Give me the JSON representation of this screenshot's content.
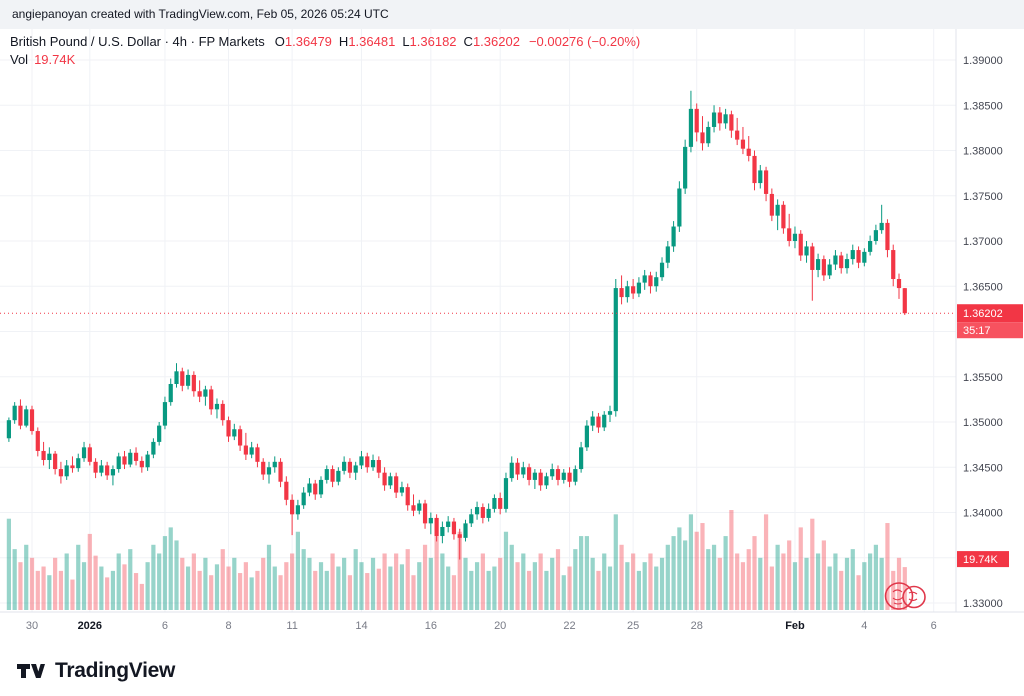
{
  "attribution": {
    "text": "angiepanoyan created with TradingView.com, Feb 05, 2026 05:24 UTC"
  },
  "legend": {
    "title": "British Pound / U.S. Dollar · 4h · FP Markets",
    "ohlc": [
      {
        "label": "O",
        "value": "1.36479"
      },
      {
        "label": "H",
        "value": "1.36481"
      },
      {
        "label": "L",
        "value": "1.36182"
      },
      {
        "label": "C",
        "value": "1.36202"
      }
    ],
    "change": "−0.00276 (−0.20%)",
    "vol_label": "Vol",
    "vol_value": "19.74K"
  },
  "price_scale": {
    "last_price_badge": "1.36202",
    "countdown": "35:17",
    "volume_badge": "19.74K"
  },
  "footer": {
    "logo_text": "TradingView"
  },
  "icons": {
    "logo": "tradingview-logo",
    "seal": "red-seal-stamp"
  },
  "colors": {
    "up": "#089981",
    "down": "#f23645",
    "vol_up": "rgba(8,153,129,0.42)",
    "vol_down": "rgba(242,54,69,0.38)",
    "grid": "#f0f2f6",
    "axis_text": "#434651",
    "muted_text": "#787b86",
    "bold_label": "#131722",
    "separator": "#e0e3eb",
    "countdown_bg": "#f7525f"
  },
  "chart_data": {
    "type": "candlestick",
    "title": "British Pound / U.S. Dollar",
    "interval": "4h",
    "exchange": "FP Markets",
    "ohlc_header": {
      "open": 1.36479,
      "high": 1.36481,
      "low": 1.36182,
      "close": 1.36202,
      "change": "−0.00276 (−0.20%)",
      "volume": "19.74K"
    },
    "last_price": 1.36202,
    "y_axis": {
      "ticks": [
        "1.39000",
        "1.38500",
        "1.38000",
        "1.37500",
        "1.37000",
        "1.36500",
        "1.35500",
        "1.35000",
        "1.34500",
        "1.34000",
        "1.33500",
        "1.33000"
      ],
      "grid_min": 1.33,
      "grid_max": 1.39,
      "grid_step": 0.005
    },
    "x_labels": [
      {
        "text": "30",
        "idx": 4
      },
      {
        "text": "2026",
        "idx": 14,
        "bold": true
      },
      {
        "text": "6",
        "idx": 27
      },
      {
        "text": "8",
        "idx": 38
      },
      {
        "text": "11",
        "idx": 49
      },
      {
        "text": "14",
        "idx": 61
      },
      {
        "text": "16",
        "idx": 73
      },
      {
        "text": "20",
        "idx": 85
      },
      {
        "text": "22",
        "idx": 97
      },
      {
        "text": "25",
        "idx": 108
      },
      {
        "text": "28",
        "idx": 119
      },
      {
        "text": "Feb",
        "idx": 136,
        "bold": true
      },
      {
        "text": "4",
        "idx": 148
      },
      {
        "text": "6",
        "idx": 160
      }
    ],
    "candles": [
      [
        1.3482,
        1.3505,
        1.3478,
        1.3502
      ],
      [
        1.3502,
        1.3522,
        1.3498,
        1.3518
      ],
      [
        1.3518,
        1.3525,
        1.3492,
        1.3496
      ],
      [
        1.3496,
        1.3518,
        1.3494,
        1.3514
      ],
      [
        1.3514,
        1.3518,
        1.3486,
        1.349
      ],
      [
        1.349,
        1.3494,
        1.3462,
        1.3468
      ],
      [
        1.3468,
        1.3478,
        1.3452,
        1.3458
      ],
      [
        1.3458,
        1.3472,
        1.3448,
        1.3465
      ],
      [
        1.3465,
        1.3468,
        1.3442,
        1.3448
      ],
      [
        1.3448,
        1.3456,
        1.3432,
        1.344
      ],
      [
        1.344,
        1.3458,
        1.3436,
        1.3452
      ],
      [
        1.3452,
        1.3462,
        1.3444,
        1.3449
      ],
      [
        1.3449,
        1.3465,
        1.3445,
        1.346
      ],
      [
        1.346,
        1.3478,
        1.3456,
        1.3472
      ],
      [
        1.3472,
        1.3476,
        1.3452,
        1.3456
      ],
      [
        1.3456,
        1.346,
        1.3438,
        1.3444
      ],
      [
        1.3444,
        1.3458,
        1.344,
        1.3452
      ],
      [
        1.3452,
        1.3456,
        1.3436,
        1.3441
      ],
      [
        1.3441,
        1.3452,
        1.343,
        1.3448
      ],
      [
        1.3448,
        1.3466,
        1.3444,
        1.3462
      ],
      [
        1.3462,
        1.3468,
        1.3448,
        1.3453
      ],
      [
        1.3453,
        1.347,
        1.345,
        1.3466
      ],
      [
        1.3466,
        1.3472,
        1.3452,
        1.3457
      ],
      [
        1.3457,
        1.3462,
        1.3444,
        1.345
      ],
      [
        1.345,
        1.3468,
        1.3446,
        1.3464
      ],
      [
        1.3464,
        1.3482,
        1.346,
        1.3478
      ],
      [
        1.3478,
        1.35,
        1.3474,
        1.3496
      ],
      [
        1.3496,
        1.3528,
        1.3492,
        1.3522
      ],
      [
        1.3522,
        1.3548,
        1.3518,
        1.3542
      ],
      [
        1.3542,
        1.3565,
        1.3538,
        1.3556
      ],
      [
        1.3556,
        1.356,
        1.3534,
        1.354
      ],
      [
        1.354,
        1.3558,
        1.3536,
        1.3552
      ],
      [
        1.3552,
        1.3556,
        1.3528,
        1.3534
      ],
      [
        1.3534,
        1.3546,
        1.3522,
        1.3528
      ],
      [
        1.3528,
        1.354,
        1.3518,
        1.3536
      ],
      [
        1.3536,
        1.354,
        1.3508,
        1.3514
      ],
      [
        1.3514,
        1.3526,
        1.3504,
        1.352
      ],
      [
        1.352,
        1.3524,
        1.3496,
        1.3502
      ],
      [
        1.3502,
        1.3506,
        1.3478,
        1.3484
      ],
      [
        1.3484,
        1.3498,
        1.348,
        1.3492
      ],
      [
        1.3492,
        1.3496,
        1.3468,
        1.3474
      ],
      [
        1.3474,
        1.3488,
        1.3458,
        1.3464
      ],
      [
        1.3464,
        1.3478,
        1.346,
        1.3472
      ],
      [
        1.3472,
        1.3476,
        1.345,
        1.3456
      ],
      [
        1.3456,
        1.346,
        1.3436,
        1.3442
      ],
      [
        1.3442,
        1.3456,
        1.3432,
        1.345
      ],
      [
        1.345,
        1.3462,
        1.3444,
        1.3456
      ],
      [
        1.3456,
        1.346,
        1.3428,
        1.3434
      ],
      [
        1.3434,
        1.344,
        1.3408,
        1.3414
      ],
      [
        1.3414,
        1.342,
        1.3375,
        1.3398
      ],
      [
        1.3398,
        1.3414,
        1.3392,
        1.3408
      ],
      [
        1.3408,
        1.3428,
        1.3404,
        1.3422
      ],
      [
        1.3422,
        1.3438,
        1.3418,
        1.3432
      ],
      [
        1.3432,
        1.3436,
        1.3414,
        1.342
      ],
      [
        1.342,
        1.344,
        1.3416,
        1.3436
      ],
      [
        1.3436,
        1.3452,
        1.3432,
        1.3448
      ],
      [
        1.3448,
        1.3452,
        1.3428,
        1.3434
      ],
      [
        1.3434,
        1.345,
        1.343,
        1.3446
      ],
      [
        1.3446,
        1.3462,
        1.3442,
        1.3456
      ],
      [
        1.3456,
        1.346,
        1.3438,
        1.3444
      ],
      [
        1.3444,
        1.3456,
        1.3436,
        1.3452
      ],
      [
        1.3452,
        1.3468,
        1.3448,
        1.3462
      ],
      [
        1.3462,
        1.3466,
        1.3444,
        1.345
      ],
      [
        1.345,
        1.3464,
        1.3446,
        1.3458
      ],
      [
        1.3458,
        1.3462,
        1.3438,
        1.3444
      ],
      [
        1.3444,
        1.345,
        1.3424,
        1.343
      ],
      [
        1.343,
        1.3444,
        1.3426,
        1.344
      ],
      [
        1.344,
        1.3444,
        1.3416,
        1.3422
      ],
      [
        1.3422,
        1.3434,
        1.3418,
        1.3428
      ],
      [
        1.3428,
        1.3432,
        1.3402,
        1.3408
      ],
      [
        1.3408,
        1.342,
        1.3396,
        1.3402
      ],
      [
        1.3402,
        1.3414,
        1.3398,
        1.341
      ],
      [
        1.341,
        1.3414,
        1.3382,
        1.3388
      ],
      [
        1.3388,
        1.34,
        1.3376,
        1.3394
      ],
      [
        1.3394,
        1.3398,
        1.3368,
        1.3374
      ],
      [
        1.3374,
        1.339,
        1.3366,
        1.3384
      ],
      [
        1.3384,
        1.3396,
        1.3378,
        1.339
      ],
      [
        1.339,
        1.3394,
        1.337,
        1.3376
      ],
      [
        1.3376,
        1.3382,
        1.3348,
        1.3372
      ],
      [
        1.3372,
        1.3392,
        1.3368,
        1.3388
      ],
      [
        1.3388,
        1.3404,
        1.3384,
        1.3398
      ],
      [
        1.3398,
        1.3412,
        1.3392,
        1.3406
      ],
      [
        1.3406,
        1.341,
        1.3388,
        1.3394
      ],
      [
        1.3394,
        1.341,
        1.339,
        1.3404
      ],
      [
        1.3404,
        1.342,
        1.34,
        1.3416
      ],
      [
        1.3416,
        1.3422,
        1.3398,
        1.3404
      ],
      [
        1.3404,
        1.3444,
        1.34,
        1.3438
      ],
      [
        1.3438,
        1.3462,
        1.3434,
        1.3455
      ],
      [
        1.3455,
        1.346,
        1.3436,
        1.3442
      ],
      [
        1.3442,
        1.3456,
        1.3438,
        1.345
      ],
      [
        1.345,
        1.3454,
        1.343,
        1.3436
      ],
      [
        1.3436,
        1.3448,
        1.3426,
        1.3444
      ],
      [
        1.3444,
        1.3448,
        1.3424,
        1.343
      ],
      [
        1.343,
        1.3444,
        1.3426,
        1.344
      ],
      [
        1.344,
        1.3454,
        1.3436,
        1.3448
      ],
      [
        1.3448,
        1.3452,
        1.343,
        1.3436
      ],
      [
        1.3436,
        1.3448,
        1.3432,
        1.3444
      ],
      [
        1.3444,
        1.345,
        1.3428,
        1.3434
      ],
      [
        1.3434,
        1.3452,
        1.343,
        1.3448
      ],
      [
        1.3448,
        1.3478,
        1.3444,
        1.3472
      ],
      [
        1.3472,
        1.3502,
        1.3468,
        1.3496
      ],
      [
        1.3496,
        1.3512,
        1.349,
        1.3506
      ],
      [
        1.3506,
        1.351,
        1.3488,
        1.3494
      ],
      [
        1.3494,
        1.3512,
        1.349,
        1.3508
      ],
      [
        1.3508,
        1.3518,
        1.35,
        1.3512
      ],
      [
        1.3512,
        1.3658,
        1.3506,
        1.3648
      ],
      [
        1.3648,
        1.3662,
        1.363,
        1.3638
      ],
      [
        1.3638,
        1.3656,
        1.3632,
        1.365
      ],
      [
        1.365,
        1.3658,
        1.3636,
        1.3642
      ],
      [
        1.3642,
        1.366,
        1.3638,
        1.3654
      ],
      [
        1.3654,
        1.3668,
        1.3646,
        1.3662
      ],
      [
        1.3662,
        1.3666,
        1.3642,
        1.365
      ],
      [
        1.365,
        1.3666,
        1.3644,
        1.366
      ],
      [
        1.366,
        1.3682,
        1.3656,
        1.3676
      ],
      [
        1.3676,
        1.37,
        1.367,
        1.3694
      ],
      [
        1.3694,
        1.3722,
        1.3688,
        1.3716
      ],
      [
        1.3716,
        1.3766,
        1.371,
        1.3758
      ],
      [
        1.3758,
        1.3812,
        1.3752,
        1.3804
      ],
      [
        1.3804,
        1.3866,
        1.3798,
        1.3846
      ],
      [
        1.3846,
        1.3852,
        1.381,
        1.382
      ],
      [
        1.382,
        1.3838,
        1.38,
        1.3808
      ],
      [
        1.3808,
        1.3832,
        1.3804,
        1.3826
      ],
      [
        1.3826,
        1.385,
        1.382,
        1.3842
      ],
      [
        1.3842,
        1.3848,
        1.3822,
        1.383
      ],
      [
        1.383,
        1.3846,
        1.3824,
        1.384
      ],
      [
        1.384,
        1.3844,
        1.3814,
        1.3822
      ],
      [
        1.3822,
        1.3836,
        1.3806,
        1.3812
      ],
      [
        1.3812,
        1.3826,
        1.3796,
        1.3802
      ],
      [
        1.3802,
        1.3816,
        1.3788,
        1.3794
      ],
      [
        1.3794,
        1.38,
        1.3756,
        1.3764
      ],
      [
        1.3764,
        1.3784,
        1.3758,
        1.3778
      ],
      [
        1.3778,
        1.3782,
        1.3744,
        1.3752
      ],
      [
        1.3752,
        1.3758,
        1.3722,
        1.3728
      ],
      [
        1.3728,
        1.3746,
        1.3712,
        1.374
      ],
      [
        1.374,
        1.3744,
        1.3708,
        1.3714
      ],
      [
        1.3714,
        1.373,
        1.3694,
        1.37
      ],
      [
        1.37,
        1.3716,
        1.3692,
        1.3708
      ],
      [
        1.3708,
        1.3712,
        1.3678,
        1.3684
      ],
      [
        1.3684,
        1.37,
        1.3676,
        1.3694
      ],
      [
        1.3694,
        1.3698,
        1.3634,
        1.3668
      ],
      [
        1.3668,
        1.3686,
        1.366,
        1.368
      ],
      [
        1.368,
        1.3684,
        1.3656,
        1.3662
      ],
      [
        1.3662,
        1.368,
        1.3658,
        1.3674
      ],
      [
        1.3674,
        1.369,
        1.3668,
        1.3684
      ],
      [
        1.3684,
        1.3688,
        1.3664,
        1.367
      ],
      [
        1.367,
        1.3686,
        1.3664,
        1.368
      ],
      [
        1.368,
        1.3696,
        1.3674,
        1.369
      ],
      [
        1.369,
        1.3694,
        1.367,
        1.3676
      ],
      [
        1.3676,
        1.3692,
        1.3672,
        1.3688
      ],
      [
        1.3688,
        1.3706,
        1.3684,
        1.37
      ],
      [
        1.37,
        1.3718,
        1.3696,
        1.3712
      ],
      [
        1.3712,
        1.374,
        1.3708,
        1.372
      ],
      [
        1.372,
        1.3724,
        1.3682,
        1.369
      ],
      [
        1.369,
        1.3696,
        1.365,
        1.3658
      ],
      [
        1.3658,
        1.3664,
        1.3636,
        1.3648
      ],
      [
        1.36479,
        1.36481,
        1.36182,
        1.36202
      ]
    ],
    "volumes": [
      42,
      28,
      22,
      30,
      24,
      18,
      20,
      16,
      24,
      18,
      26,
      14,
      30,
      22,
      35,
      25,
      20,
      15,
      18,
      26,
      21,
      28,
      17,
      12,
      22,
      30,
      26,
      34,
      38,
      32,
      24,
      20,
      26,
      18,
      24,
      16,
      21,
      28,
      20,
      24,
      17,
      22,
      15,
      18,
      24,
      30,
      20,
      16,
      22,
      26,
      36,
      28,
      24,
      18,
      22,
      18,
      26,
      20,
      24,
      16,
      28,
      22,
      17,
      24,
      19,
      26,
      20,
      26,
      21,
      28,
      16,
      22,
      30,
      24,
      34,
      26,
      20,
      16,
      36,
      24,
      18,
      22,
      26,
      18,
      20,
      24,
      36,
      30,
      22,
      26,
      18,
      22,
      26,
      18,
      24,
      28,
      16,
      20,
      28,
      34,
      34,
      24,
      18,
      26,
      20,
      44,
      30,
      22,
      26,
      18,
      22,
      26,
      20,
      24,
      30,
      34,
      38,
      32,
      44,
      36,
      40,
      28,
      30,
      24,
      34,
      46,
      26,
      22,
      28,
      34,
      24,
      44,
      20,
      30,
      26,
      32,
      22,
      38,
      24,
      42,
      26,
      32,
      20,
      26,
      18,
      24,
      28,
      16,
      22,
      26,
      30,
      24,
      40,
      18,
      24,
      19.74
    ]
  }
}
